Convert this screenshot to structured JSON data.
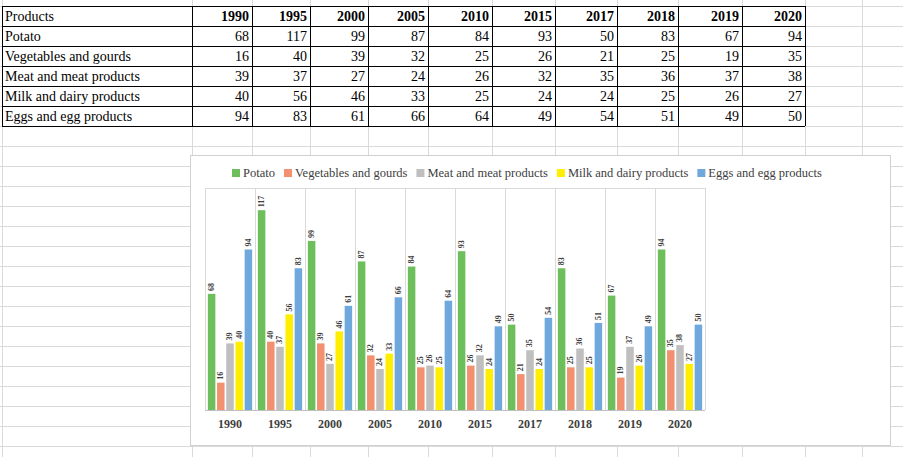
{
  "table": {
    "header": [
      "Products",
      "1990",
      "1995",
      "2000",
      "2005",
      "2010",
      "2015",
      "2017",
      "2018",
      "2019",
      "2020"
    ],
    "rows": [
      [
        "Potato",
        68,
        117,
        99,
        87,
        84,
        93,
        50,
        83,
        67,
        94
      ],
      [
        "Vegetables and gourds",
        16,
        40,
        39,
        32,
        25,
        26,
        21,
        25,
        19,
        35
      ],
      [
        "Meat and meat products",
        39,
        37,
        27,
        24,
        26,
        32,
        35,
        36,
        37,
        38
      ],
      [
        "Milk and dairy products",
        40,
        56,
        46,
        33,
        25,
        24,
        24,
        25,
        26,
        27
      ],
      [
        "Eggs and egg products",
        94,
        83,
        61,
        66,
        64,
        49,
        54,
        51,
        49,
        50
      ]
    ]
  },
  "chart_data": {
    "type": "bar",
    "categories": [
      "1990",
      "1995",
      "2000",
      "2005",
      "2010",
      "2015",
      "2017",
      "2018",
      "2019",
      "2020"
    ],
    "series": [
      {
        "name": "Potato",
        "color": "#6cbf5a",
        "values": [
          68,
          117,
          99,
          87,
          84,
          93,
          50,
          83,
          67,
          94
        ]
      },
      {
        "name": "Vegetables and gourds",
        "color": "#f29070",
        "values": [
          16,
          40,
          39,
          32,
          25,
          26,
          21,
          25,
          19,
          35
        ]
      },
      {
        "name": "Meat and meat products",
        "color": "#bfbfbf",
        "values": [
          39,
          37,
          27,
          24,
          26,
          32,
          35,
          36,
          37,
          38
        ]
      },
      {
        "name": "Milk and dairy products",
        "color": "#ffee00",
        "values": [
          40,
          56,
          46,
          33,
          25,
          24,
          24,
          25,
          26,
          27
        ]
      },
      {
        "name": "Eggs and egg products",
        "color": "#6fa8dc",
        "values": [
          94,
          83,
          61,
          66,
          64,
          49,
          54,
          51,
          49,
          50
        ]
      }
    ],
    "ylim": [
      0,
      130
    ],
    "grid": false,
    "legend": "top",
    "data_labels": true,
    "tick_labels": "x"
  }
}
